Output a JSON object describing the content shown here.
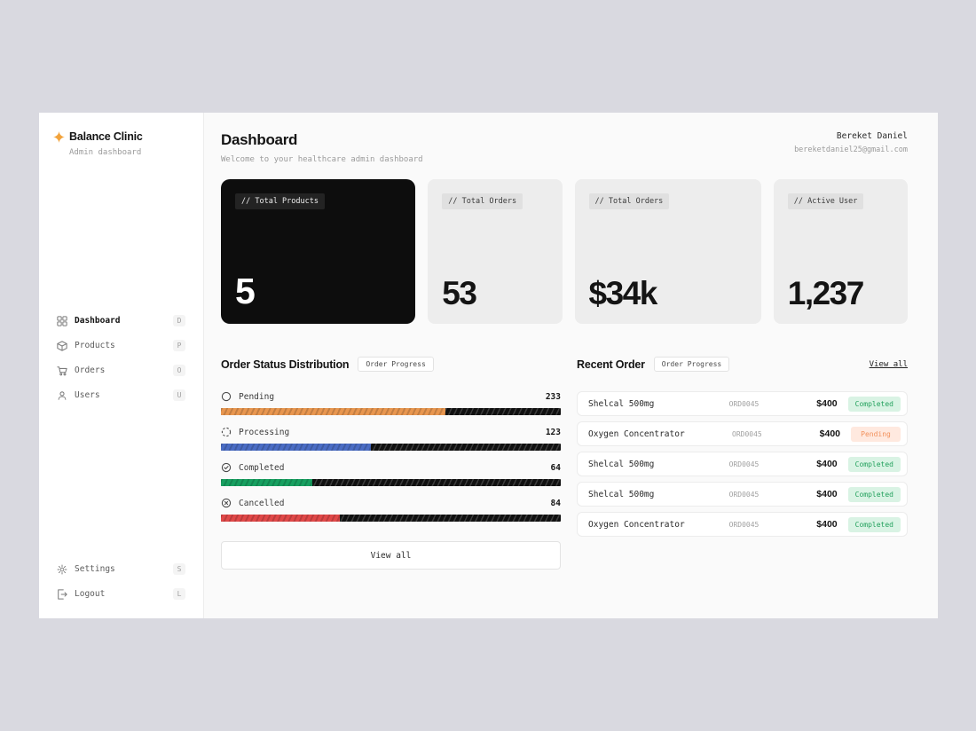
{
  "app": {
    "brand": {
      "name": "Balance Clinic",
      "subtitle": "Admin dashboard"
    },
    "sidebar": {
      "nav": [
        {
          "label": "Dashboard",
          "shortcut": "D"
        },
        {
          "label": "Products",
          "shortcut": "P"
        },
        {
          "label": "Orders",
          "shortcut": "O"
        },
        {
          "label": "Users",
          "shortcut": "U"
        }
      ],
      "footer": [
        {
          "label": "Settings",
          "shortcut": "S"
        },
        {
          "label": "Logout",
          "shortcut": "L"
        }
      ]
    },
    "header": {
      "title": "Dashboard",
      "subtitle": "Welcome to your healthcare admin dashboard",
      "user": {
        "name": "Bereket Daniel",
        "email": "bereketdaniel25@gmail.com"
      }
    },
    "stats": [
      {
        "label": "// Total Products",
        "value": "5"
      },
      {
        "label": "// Total Orders",
        "value": "53"
      },
      {
        "label": "// Total Orders",
        "value": "$34k"
      },
      {
        "label": "// Active User",
        "value": "1,237"
      }
    ],
    "order_status": {
      "title": "Order Status Distribution",
      "badge": "Order Progress",
      "view_all": "View all",
      "items": [
        {
          "label": "Pending",
          "value": 233,
          "percent": 66,
          "color": "#e8964f"
        },
        {
          "label": "Processing",
          "value": 123,
          "percent": 44,
          "color": "#4a6cc4"
        },
        {
          "label": "Completed",
          "value": 64,
          "percent": 27,
          "color": "#17a060"
        },
        {
          "label": "Cancelled",
          "value": 84,
          "percent": 35,
          "color": "#e04848"
        }
      ]
    },
    "recent_orders": {
      "title": "Recent Order",
      "badge": "Order Progress",
      "view_all": "View all",
      "rows": [
        {
          "name": "Shelcal 500mg",
          "id": "ORD0045",
          "price": "$400",
          "status": "Completed"
        },
        {
          "name": "Oxygen Concentrator",
          "id": "ORD0045",
          "price": "$400",
          "status": "Pending"
        },
        {
          "name": "Shelcal 500mg",
          "id": "ORD0045",
          "price": "$400",
          "status": "Completed"
        },
        {
          "name": "Shelcal 500mg",
          "id": "ORD0045",
          "price": "$400",
          "status": "Completed"
        },
        {
          "name": "Oxygen Concentrator",
          "id": "ORD0045",
          "price": "$400",
          "status": "Completed"
        }
      ]
    }
  }
}
